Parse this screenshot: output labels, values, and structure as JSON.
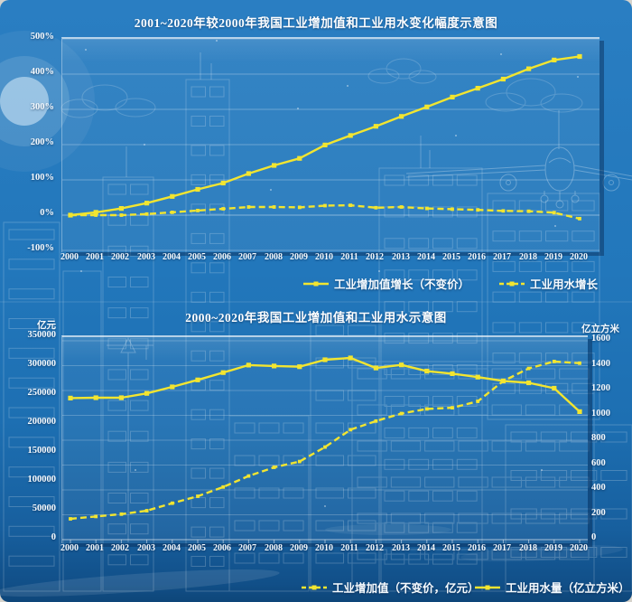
{
  "page": {
    "background_color": "#2277bb",
    "accent_yellow": "#f2e530",
    "text_color": "#ffffff"
  },
  "chart_data": [
    {
      "type": "line",
      "title": "2001~2020年较2000年我国工业增加值和工业用水变化幅度示意图",
      "x": [
        2000,
        2001,
        2002,
        2003,
        2004,
        2005,
        2006,
        2007,
        2008,
        2009,
        2010,
        2011,
        2012,
        2013,
        2014,
        2015,
        2016,
        2017,
        2018,
        2019,
        2020
      ],
      "y_axis": {
        "unit": "%",
        "min": -100,
        "max": 500,
        "tick_values": [
          500,
          400,
          300,
          200,
          100,
          0,
          -100
        ],
        "tick_suffix": "%"
      },
      "grid": true,
      "legend_position": "bottom",
      "series": [
        {
          "name": "工业增加值增长（不变价）",
          "line_style": "solid",
          "values": [
            0,
            8,
            19,
            34,
            53,
            73,
            91,
            118,
            141,
            161,
            199,
            226,
            252,
            280,
            307,
            335,
            360,
            386,
            415,
            440,
            450
          ]
        },
        {
          "name": "工业用水增长",
          "line_style": "dashed",
          "values": [
            0,
            0,
            0,
            3,
            8,
            13,
            18,
            23,
            23,
            22,
            27,
            28,
            21,
            23,
            19,
            17,
            15,
            12,
            11,
            7,
            -10
          ]
        }
      ]
    },
    {
      "type": "line",
      "title": "2000~2020年我国工业增加值和工业用水示意图",
      "x": [
        2000,
        2001,
        2002,
        2003,
        2004,
        2005,
        2006,
        2007,
        2008,
        2009,
        2010,
        2011,
        2012,
        2013,
        2014,
        2015,
        2016,
        2017,
        2018,
        2019,
        2020
      ],
      "left_axis": {
        "unit": "亿元",
        "min": 0,
        "max": 350000,
        "tick_values": [
          350000,
          300000,
          250000,
          200000,
          150000,
          100000,
          50000,
          0
        ]
      },
      "right_axis": {
        "unit": "亿立方米",
        "min": 0,
        "max": 1600,
        "tick_values": [
          1600,
          1400,
          1200,
          1000,
          800,
          600,
          400,
          200,
          0
        ]
      },
      "grid": true,
      "legend_position": "bottom",
      "series": [
        {
          "name": "工业增加值（不变价，亿元）",
          "line_style": "dashed",
          "axis": "left",
          "values": [
            36000,
            40000,
            44000,
            50000,
            63000,
            75000,
            91000,
            110000,
            125000,
            135000,
            160000,
            190000,
            205000,
            218000,
            226000,
            228000,
            239000,
            274000,
            296000,
            308000,
            305000
          ]
        },
        {
          "name": "工业用水量（亿立方米）",
          "line_style": "solid",
          "axis": "right",
          "values": [
            1139,
            1142,
            1142,
            1177,
            1229,
            1285,
            1344,
            1404,
            1397,
            1391,
            1447,
            1462,
            1381,
            1406,
            1356,
            1335,
            1308,
            1277,
            1262,
            1218,
            1030
          ]
        }
      ]
    }
  ]
}
